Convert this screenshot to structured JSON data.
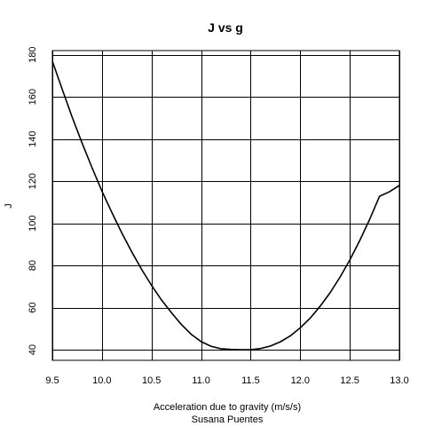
{
  "chart_data": {
    "type": "line",
    "title": "J vs g",
    "xlabel": "Acceleration due to gravity (m/s/s)",
    "subtitle": "Susana Puentes",
    "ylabel": "J",
    "xlim": [
      9.5,
      13.0
    ],
    "ylim": [
      35,
      182
    ],
    "x_ticks": [
      9.5,
      10.0,
      10.5,
      11.0,
      11.5,
      12.0,
      12.5,
      13.0
    ],
    "x_tick_labels": [
      "9.5",
      "10.0",
      "10.5",
      "11.0",
      "11.5",
      "12.0",
      "12.5",
      "13.0"
    ],
    "y_ticks": [
      40,
      60,
      80,
      100,
      120,
      140,
      160,
      180
    ],
    "y_tick_labels": [
      "40",
      "60",
      "80",
      "100",
      "120",
      "140",
      "160",
      "180"
    ],
    "grid": true,
    "series": [
      {
        "x": [
          9.5,
          9.6,
          9.7,
          9.8,
          9.9,
          10.0,
          10.1,
          10.2,
          10.3,
          10.4,
          10.5,
          10.6,
          10.7,
          10.8,
          10.9,
          11.0,
          11.1,
          11.2,
          11.3,
          11.4,
          11.5,
          11.6,
          11.7,
          11.8,
          11.9,
          12.0,
          12.1,
          12.2,
          12.3,
          12.4,
          12.5,
          12.6,
          12.7,
          12.8,
          12.9,
          13.0
        ],
        "y": [
          177,
          163.5,
          150.4,
          138.1,
          126.4,
          115.3,
          105.2,
          95.5,
          86.5,
          78.2,
          70.6,
          63.7,
          57.6,
          52.1,
          47.4,
          43.9,
          41.7,
          40.5,
          40.2,
          40.0,
          40.0,
          40.6,
          41.8,
          43.8,
          46.6,
          50.4,
          55.0,
          60.6,
          67.0,
          74.4,
          82.6,
          91.8,
          101.9,
          112.9,
          115.0,
          118.0
        ]
      }
    ]
  }
}
